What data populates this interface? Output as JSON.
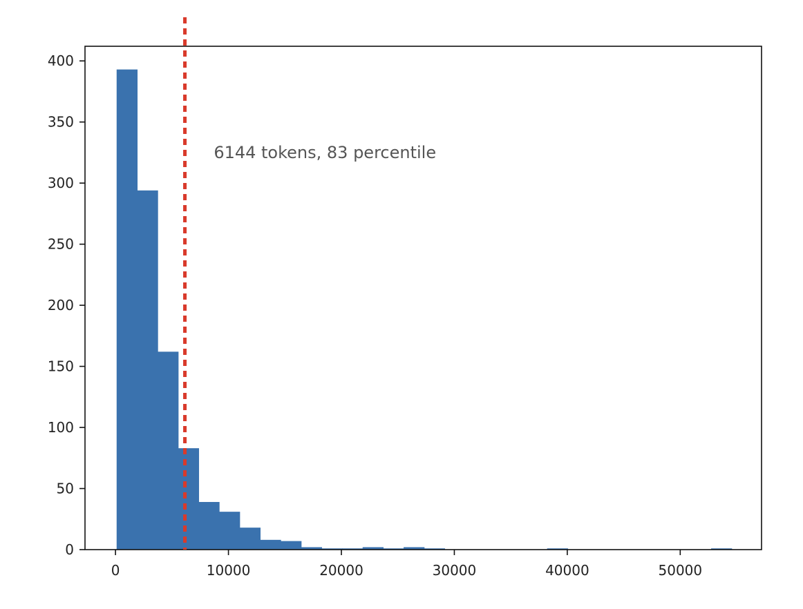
{
  "chart_data": {
    "type": "bar",
    "subtype": "histogram",
    "title": "",
    "xlabel": "",
    "ylabel": "",
    "xlim": [
      -2700,
      57200
    ],
    "ylim": [
      0,
      412
    ],
    "x_ticks": [
      0,
      10000,
      20000,
      30000,
      40000,
      50000
    ],
    "x_tick_labels": [
      "0",
      "10000",
      "20000",
      "30000",
      "40000",
      "50000"
    ],
    "y_ticks": [
      0,
      50,
      100,
      150,
      200,
      250,
      300,
      350,
      400
    ],
    "y_tick_labels": [
      "0",
      "50",
      "100",
      "150",
      "200",
      "250",
      "300",
      "350",
      "400"
    ],
    "bin_start": 100,
    "bin_width": 1815,
    "values": [
      393,
      294,
      162,
      83,
      39,
      31,
      18,
      8,
      7,
      2,
      1,
      1,
      2,
      1,
      2,
      1,
      0,
      0,
      0,
      0,
      0,
      1,
      0,
      0,
      0,
      0,
      0,
      0,
      0,
      1
    ],
    "bar_color": "#3a72ae",
    "grid": false,
    "legend": "none",
    "reference_line": {
      "x": 6144,
      "style": "dotted",
      "color": "#d93a2b"
    },
    "annotation": {
      "text": "6144 tokens, 83 percentile",
      "x": 8700,
      "y": 325
    }
  }
}
